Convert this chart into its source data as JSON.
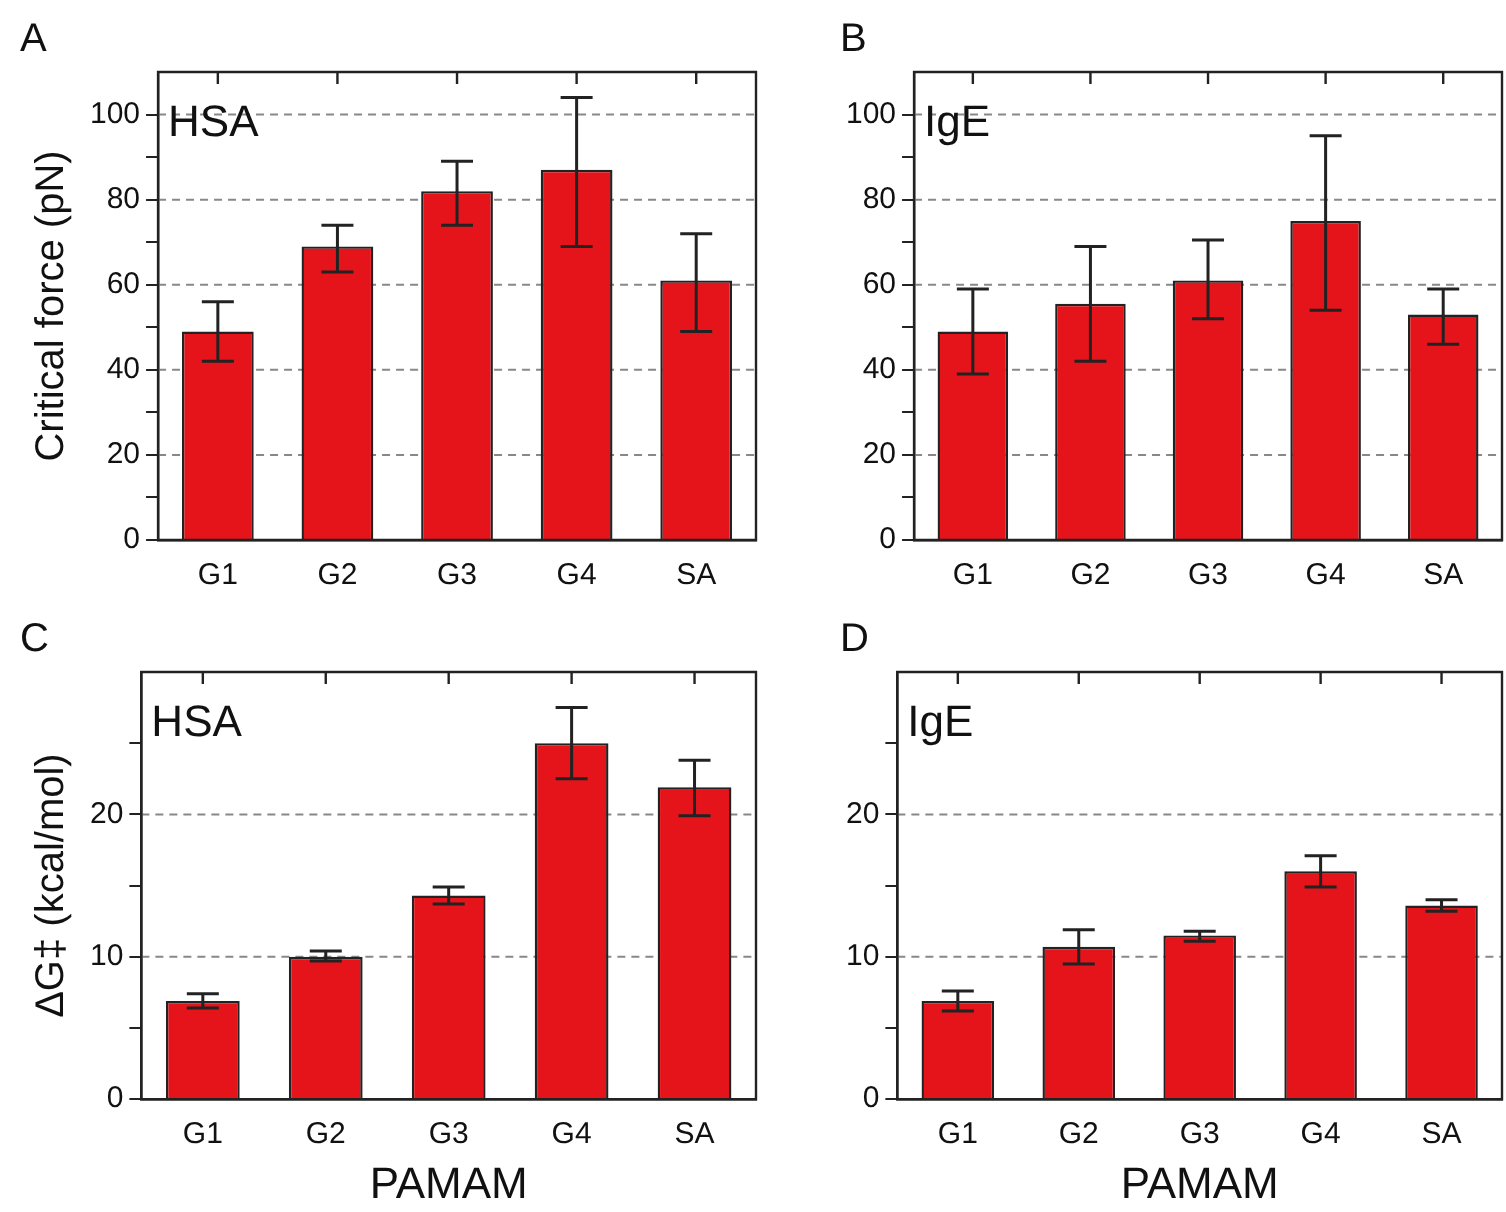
{
  "chart_data": [
    {
      "type": "bar",
      "title": "A",
      "ylabel": "Critical force (pN)",
      "annotations": [
        "HSA"
      ],
      "categories": [
        "G1",
        "G2",
        "G3",
        "G4",
        "SA"
      ],
      "values": [
        49,
        69,
        82,
        87,
        61
      ],
      "errors": [
        [
          42,
          56
        ],
        [
          63,
          74
        ],
        [
          74,
          89
        ],
        [
          69,
          104
        ],
        [
          49,
          72
        ]
      ],
      "color": "#e5141a",
      "ylim": [
        0,
        110
      ],
      "yticks": [
        0,
        {
          "value": 10,
          "label": null
        },
        20,
        {
          "value": 30,
          "label": null
        },
        40,
        {
          "value": 50,
          "label": null
        },
        60,
        {
          "value": 70,
          "label": null
        },
        80,
        {
          "value": 90,
          "label": null
        },
        100
      ],
      "grid": "y",
      "legend": false
    },
    {
      "type": "bar",
      "title": "B",
      "annotations": [
        "IgE"
      ],
      "categories": [
        "G1",
        "G2",
        "G3",
        "G4",
        "SA"
      ],
      "values": [
        49,
        55.5,
        61,
        75,
        53
      ],
      "errors": [
        [
          39,
          59
        ],
        [
          42,
          69
        ],
        [
          52,
          70.5
        ],
        [
          54,
          95
        ],
        [
          46,
          59
        ]
      ],
      "color": "#e5141a",
      "ylim": [
        0,
        110
      ],
      "yticks": [
        0,
        {
          "value": 10,
          "label": null
        },
        20,
        {
          "value": 30,
          "label": null
        },
        40,
        {
          "value": 50,
          "label": null
        },
        60,
        {
          "value": 70,
          "label": null
        },
        80,
        {
          "value": 90,
          "label": null
        },
        100
      ],
      "grid": "y",
      "legend": false
    },
    {
      "type": "bar",
      "title": "C",
      "ylabel": "ΔG‡ (kcal/mol)",
      "xlabel": "PAMAM",
      "annotations": [
        "HSA"
      ],
      "categories": [
        "G1",
        "G2",
        "G3",
        "G4",
        "SA"
      ],
      "values": [
        6.9,
        10,
        14.3,
        25,
        21.9
      ],
      "errors": [
        [
          6.4,
          7.4
        ],
        [
          9.7,
          10.4
        ],
        [
          13.7,
          14.9
        ],
        [
          22.5,
          27.5
        ],
        [
          19.9,
          23.8
        ]
      ],
      "color": "#e5141a",
      "ylim": [
        0,
        30
      ],
      "yticks": [
        0,
        {
          "value": 5,
          "label": null
        },
        10,
        {
          "value": 15,
          "label": null
        },
        20,
        {
          "value": 25,
          "label": null
        }
      ],
      "grid": "y",
      "legend": false
    },
    {
      "type": "bar",
      "title": "D",
      "xlabel": "PAMAM",
      "annotations": [
        "IgE"
      ],
      "categories": [
        "G1",
        "G2",
        "G3",
        "G4",
        "SA"
      ],
      "values": [
        6.9,
        10.7,
        11.5,
        16,
        13.6
      ],
      "errors": [
        [
          6.2,
          7.6
        ],
        [
          9.5,
          11.9
        ],
        [
          11.1,
          11.8
        ],
        [
          14.9,
          17.1
        ],
        [
          13.2,
          14
        ]
      ],
      "color": "#e5141a",
      "ylim": [
        0,
        30
      ],
      "yticks": [
        0,
        {
          "value": 5,
          "label": null
        },
        10,
        {
          "value": 15,
          "label": null
        },
        20,
        {
          "value": 25,
          "label": null
        }
      ],
      "grid": "y",
      "legend": false
    }
  ]
}
